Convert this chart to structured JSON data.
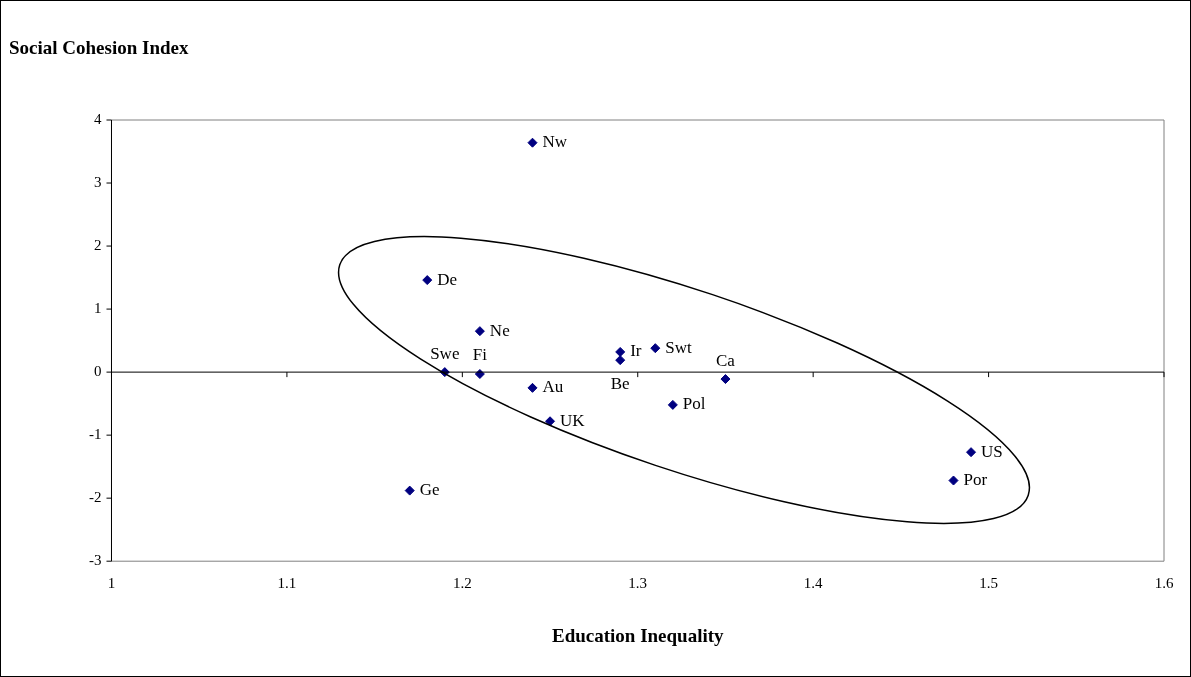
{
  "chart_data": {
    "type": "scatter",
    "xlabel": "Education Inequality",
    "ylabel": "Social Cohesion Index",
    "x": [
      1.24,
      1.18,
      1.21,
      1.29,
      1.29,
      1.31,
      1.19,
      1.21,
      1.24,
      1.35,
      1.25,
      1.32,
      1.49,
      1.48,
      1.17
    ],
    "series": [
      {
        "color": "#000080",
        "values": [
          3.64,
          1.46,
          0.65,
          0.32,
          0.19,
          0.38,
          0,
          -0.03,
          -0.25,
          -0.11,
          -0.78,
          -0.52,
          -1.27,
          -1.72,
          -1.88
        ]
      }
    ],
    "annotations": [
      {
        "text": "Nw",
        "x": 1.24,
        "y": 3.64
      },
      {
        "text": "De",
        "x": 1.18,
        "y": 1.46
      },
      {
        "text": "Ne",
        "x": 1.21,
        "y": 0.65
      },
      {
        "text": "Ir",
        "x": 1.29,
        "y": 0.32
      },
      {
        "text": "Be",
        "x": 1.29,
        "y": 0.19
      },
      {
        "text": "Swt",
        "x": 1.31,
        "y": 0.38
      },
      {
        "text": "Swe",
        "x": 1.19,
        "y": 0
      },
      {
        "text": "Fi",
        "x": 1.21,
        "y": -0.03
      },
      {
        "text": "Au",
        "x": 1.24,
        "y": -0.25
      },
      {
        "text": "Ca",
        "x": 1.35,
        "y": -0.11
      },
      {
        "text": "UK",
        "x": 1.25,
        "y": -0.78
      },
      {
        "text": "Pol",
        "x": 1.32,
        "y": -0.52
      },
      {
        "text": "US",
        "x": 1.49,
        "y": -1.27
      },
      {
        "text": "Por",
        "x": 1.48,
        "y": -1.72
      },
      {
        "text": "Ge",
        "x": 1.17,
        "y": -1.88
      }
    ],
    "xlim": [
      1,
      1.6
    ],
    "xticks": [
      1,
      1.1,
      1.2,
      1.3,
      1.4,
      1.5,
      1.6
    ],
    "ylim": [
      -3,
      4
    ],
    "yticks": [
      -3,
      -2,
      -1,
      0,
      1,
      2,
      3,
      4
    ],
    "ref_lines": [
      {
        "axis": "y",
        "value": 0
      }
    ],
    "grid": false,
    "legend": false,
    "marker": "diamond"
  }
}
